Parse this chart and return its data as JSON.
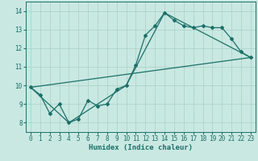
{
  "xlabel": "Humidex (Indice chaleur)",
  "xlim": [
    -0.5,
    23.5
  ],
  "ylim": [
    7.5,
    14.5
  ],
  "xticks": [
    0,
    1,
    2,
    3,
    4,
    5,
    6,
    7,
    8,
    9,
    10,
    11,
    12,
    13,
    14,
    15,
    16,
    17,
    18,
    19,
    20,
    21,
    22,
    23
  ],
  "yticks": [
    8,
    9,
    10,
    11,
    12,
    13,
    14
  ],
  "bg_color": "#c9e8e2",
  "grid_color": "#a8d0c8",
  "line_color": "#1a7068",
  "line1_x": [
    0,
    1,
    2,
    3,
    4,
    5,
    6,
    7,
    8,
    9,
    10,
    11,
    12,
    13,
    14,
    15,
    16,
    17,
    18,
    19,
    20,
    21,
    22,
    23
  ],
  "line1_y": [
    9.9,
    9.5,
    8.5,
    9.0,
    8.0,
    8.2,
    9.2,
    8.9,
    9.0,
    9.8,
    10.0,
    11.1,
    12.7,
    13.2,
    13.9,
    13.5,
    13.2,
    13.1,
    13.2,
    13.1,
    13.1,
    12.5,
    11.8,
    11.5
  ],
  "line2_x": [
    0,
    4,
    10,
    14,
    23
  ],
  "line2_y": [
    9.9,
    8.0,
    10.0,
    13.9,
    11.5
  ],
  "line3_x": [
    0,
    23
  ],
  "line3_y": [
    9.9,
    11.5
  ],
  "markersize": 2.0,
  "linewidth": 0.9,
  "label_fontsize": 6.5,
  "tick_fontsize": 5.5
}
